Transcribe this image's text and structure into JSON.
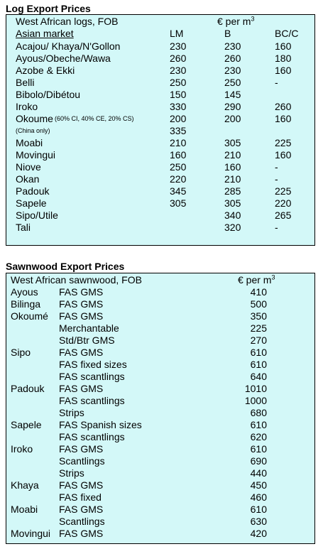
{
  "log": {
    "title": "Log Export Prices",
    "header_left": "West African logs, FOB",
    "unit_main": "€ per m",
    "unit_sup": "3",
    "market_label": "Asian market",
    "columns": [
      "LM",
      "B",
      "BC/C"
    ],
    "rows": [
      {
        "name": "Acajou/ Khaya/N'Gollon",
        "lm": "230",
        "b": "230",
        "bc": "160"
      },
      {
        "name": "Ayous/Obeche/Wawa",
        "lm": "260",
        "b": "260",
        "bc": "180"
      },
      {
        "name": "Azobe & Ekki",
        "lm": "230",
        "b": "230",
        "bc": "160"
      },
      {
        "name": "Belli",
        "lm": "250",
        "b": "250",
        "bc": "-"
      },
      {
        "name": "Bibolo/Dibétou",
        "lm": "150",
        "b": "145",
        "bc": ""
      },
      {
        "name": "Iroko",
        "lm": "330",
        "b": "290",
        "bc": "260"
      },
      {
        "name": "Okoume",
        "note": "(60% CI, 40% CE, 20% CS)",
        "lm": "200",
        "b": "200",
        "bc": "160"
      },
      {
        "name": "(China only)",
        "lm": "335",
        "b": "",
        "bc": ""
      },
      {
        "name": "Moabi",
        "lm": "210",
        "b": "305",
        "bc": "225"
      },
      {
        "name": "Movingui",
        "lm": "160",
        "b": "210",
        "bc": "160"
      },
      {
        "name": "Niove",
        "lm": "250",
        "b": "160",
        "bc": "-"
      },
      {
        "name": "Okan",
        "lm": "220",
        "b": "210",
        "bc": "-"
      },
      {
        "name": "Padouk",
        "lm": "345",
        "b": "285",
        "bc": "225"
      },
      {
        "name": "Sapele",
        "lm": "305",
        "b": "305",
        "bc": "220"
      },
      {
        "name": "Sipo/Utile",
        "lm": "",
        "b": "340",
        "bc": "265"
      },
      {
        "name": "Tali",
        "lm": "",
        "b": "320",
        "bc": "-"
      }
    ]
  },
  "sawn": {
    "title": "Sawnwood Export Prices",
    "header_left": "West African sawnwood, FOB",
    "unit_main": "€ per m",
    "unit_sup": "3",
    "rows": [
      {
        "species": "Ayous",
        "grade": "FAS GMS",
        "price": "410"
      },
      {
        "species": "Bilinga",
        "grade": "FAS GMS",
        "price": "500"
      },
      {
        "species": "Okoumé",
        "grade": "FAS GMS",
        "price": "350"
      },
      {
        "species": "",
        "grade": "Merchantable",
        "price": "225"
      },
      {
        "species": "",
        "grade": "Std/Btr GMS",
        "price": "270"
      },
      {
        "species": "Sipo",
        "grade": "FAS GMS",
        "price": "610"
      },
      {
        "species": "",
        "grade": "FAS fixed sizes",
        "price": "610"
      },
      {
        "species": "",
        "grade": "FAS scantlings",
        "price": "640"
      },
      {
        "species": "Padouk",
        "grade": "FAS GMS",
        "price": "1010"
      },
      {
        "species": "",
        "grade": "FAS scantlings",
        "price": "1000"
      },
      {
        "species": "",
        "grade": "Strips",
        "price": "680"
      },
      {
        "species": "Sapele",
        "grade": "FAS Spanish sizes",
        "price": "610"
      },
      {
        "species": "",
        "grade": "FAS scantlings",
        "price": "620"
      },
      {
        "species": "Iroko",
        "grade": "FAS GMS",
        "price": "610"
      },
      {
        "species": "",
        "grade": "Scantlings",
        "price": "690"
      },
      {
        "species": "",
        "grade": "Strips",
        "price": "440"
      },
      {
        "species": "Khaya",
        "grade": "FAS GMS",
        "price": "450"
      },
      {
        "species": "",
        "grade": "FAS fixed",
        "price": "460"
      },
      {
        "species": "Moabi",
        "grade": "FAS GMS",
        "price": "610"
      },
      {
        "species": "",
        "grade": "Scantlings",
        "price": "630"
      },
      {
        "species": "Movingui",
        "grade": "FAS GMS",
        "price": "420"
      }
    ]
  }
}
